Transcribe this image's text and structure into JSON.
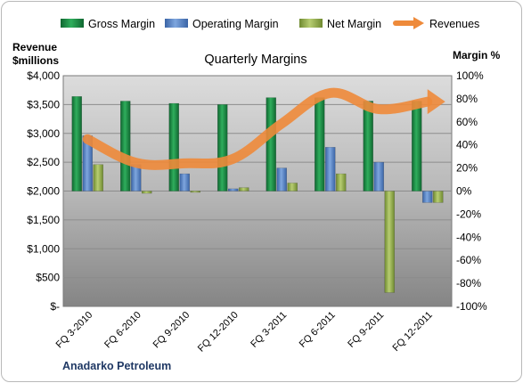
{
  "chart_data": {
    "type": "bar",
    "title": "Quarterly Margins",
    "company": "Anadarko Petroleum",
    "left_axis_label_line1": "Revenue",
    "left_axis_label_line2": "$millions",
    "right_axis_label": "Margin %",
    "categories": [
      "FQ 3-2010",
      "FQ 6-2010",
      "FQ 9-2010",
      "FQ 12-2010",
      "FQ 3-2011",
      "FQ 6-2011",
      "FQ 9-2011",
      "FQ 12-2011"
    ],
    "left_axis": {
      "range": [
        0,
        4000
      ],
      "step": 500,
      "ticks": [
        "$-",
        "$500",
        "$1,000",
        "$1,500",
        "$2,000",
        "$2,500",
        "$3,000",
        "$3,500",
        "$4,000"
      ]
    },
    "right_axis": {
      "range": [
        -100,
        100
      ],
      "step": 20,
      "ticks": [
        "-100%",
        "-80%",
        "-60%",
        "-40%",
        "-20%",
        "0%",
        "20%",
        "40%",
        "60%",
        "80%",
        "100%"
      ]
    },
    "series": [
      {
        "name": "Gross Margin",
        "axis": "right",
        "kind": "bar",
        "color": "#1e8c45",
        "values": [
          82,
          78,
          76,
          75,
          81,
          81,
          78,
          78
        ]
      },
      {
        "name": "Operating Margin",
        "axis": "right",
        "kind": "bar",
        "color": "#4f7ec0",
        "values": [
          48,
          23,
          15,
          2,
          20,
          38,
          25,
          -10
        ]
      },
      {
        "name": "Net Margin",
        "axis": "right",
        "kind": "bar",
        "color": "#8faa4a",
        "values": [
          23,
          -2,
          -1,
          3,
          7,
          15,
          -88,
          -10
        ]
      },
      {
        "name": "Revenues",
        "axis": "left",
        "kind": "line",
        "color": "#ee8a3a",
        "values": [
          2900,
          2490,
          2480,
          2560,
          3170,
          3700,
          3420,
          3550
        ]
      }
    ],
    "grid": true,
    "legend_position": "top"
  }
}
